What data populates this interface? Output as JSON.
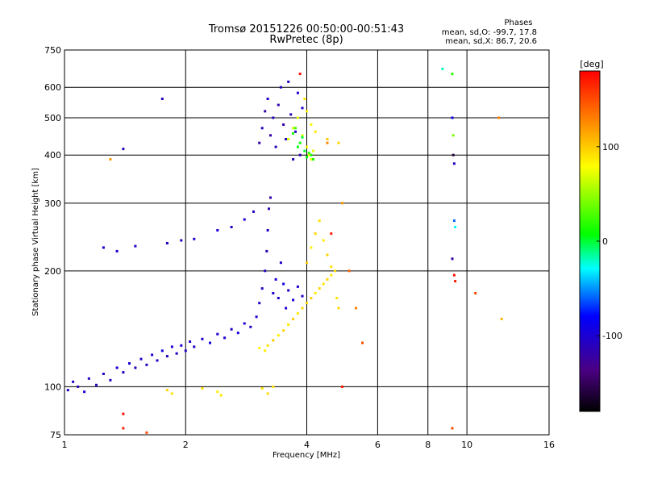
{
  "chart_data": {
    "type": "scatter",
    "title": "Tromsø 20151226 00:50:00-00:51:43",
    "subtitle": "RwPretec (8p)",
    "stats": {
      "heading": "Phases",
      "line_o": "mean, sd,O: -99.7, 17.8",
      "line_x": "mean, sd,X:  86.7, 20.6"
    },
    "xlabel": "Frequency [MHz]",
    "ylabel": "Stationary phase Virtual Height [km]",
    "x_scale": "log",
    "y_scale": "log",
    "xlim": [
      1,
      16
    ],
    "ylim": [
      75,
      750
    ],
    "x_ticks": [
      1,
      2,
      4,
      6,
      8,
      10,
      16
    ],
    "x_tick_labels": [
      "1",
      "2",
      "4",
      "6",
      "8",
      "10",
      "16"
    ],
    "y_ticks": [
      75,
      100,
      200,
      300,
      400,
      500,
      600,
      750
    ],
    "y_tick_labels": [
      "75",
      "100",
      "200",
      "300",
      "400",
      "500",
      "600",
      "750"
    ],
    "grid": true,
    "colorbar": {
      "label": "[deg]",
      "range": [
        -180,
        180
      ],
      "ticks": [
        100,
        0,
        -100
      ],
      "tick_labels": [
        "100",
        "0",
        "-100"
      ]
    },
    "series": [
      {
        "values": [
          [
            1.02,
            98,
            -110
          ],
          [
            1.05,
            103,
            -105
          ],
          [
            1.08,
            100,
            -115
          ],
          [
            1.12,
            97,
            -100
          ],
          [
            1.15,
            105,
            -108
          ],
          [
            1.2,
            101,
            -112
          ],
          [
            1.25,
            108,
            -104
          ],
          [
            1.3,
            104,
            -110
          ],
          [
            1.35,
            112,
            -100
          ],
          [
            1.4,
            109,
            -106
          ],
          [
            1.45,
            115,
            -98
          ],
          [
            1.5,
            112,
            -110
          ],
          [
            1.55,
            118,
            -102
          ],
          [
            1.6,
            114,
            -108
          ],
          [
            1.65,
            121,
            -100
          ],
          [
            1.7,
            117,
            -104
          ],
          [
            1.75,
            124,
            -96
          ],
          [
            1.8,
            120,
            -110
          ],
          [
            1.85,
            127,
            -100
          ],
          [
            1.9,
            122,
            -106
          ],
          [
            1.95,
            128,
            -98
          ],
          [
            2.0,
            124,
            -104
          ],
          [
            2.05,
            131,
            -100
          ],
          [
            2.1,
            127,
            -108
          ],
          [
            2.2,
            133,
            -102
          ],
          [
            2.3,
            130,
            -96
          ],
          [
            2.4,
            137,
            -106
          ],
          [
            2.5,
            134,
            -100
          ],
          [
            2.6,
            141,
            -104
          ],
          [
            2.7,
            138,
            -98
          ],
          [
            2.8,
            146,
            -102
          ],
          [
            2.9,
            143,
            -108
          ],
          [
            3.0,
            152,
            -100
          ],
          [
            3.05,
            165,
            -104
          ],
          [
            3.1,
            180,
            -110
          ],
          [
            3.15,
            200,
            -106
          ],
          [
            3.18,
            225,
            -112
          ],
          [
            3.2,
            255,
            -108
          ],
          [
            3.22,
            290,
            -115
          ],
          [
            3.25,
            310,
            -120
          ],
          [
            3.3,
            175,
            -100
          ],
          [
            3.35,
            190,
            -98
          ],
          [
            3.4,
            170,
            -104
          ],
          [
            3.45,
            210,
            -100
          ],
          [
            3.5,
            185,
            -96
          ],
          [
            3.55,
            160,
            -100
          ],
          [
            3.6,
            178,
            -106
          ],
          [
            3.7,
            168,
            -98
          ],
          [
            3.8,
            182,
            -102
          ],
          [
            3.9,
            172,
            -96
          ],
          [
            1.25,
            230,
            -100
          ],
          [
            1.5,
            232,
            -105
          ],
          [
            1.8,
            236,
            -108
          ],
          [
            1.95,
            240,
            -110
          ],
          [
            2.1,
            242,
            -104
          ],
          [
            2.4,
            255,
            -100
          ],
          [
            2.6,
            260,
            -106
          ],
          [
            2.8,
            272,
            -102
          ],
          [
            2.95,
            285,
            -108
          ],
          [
            3.05,
            430,
            -115
          ],
          [
            3.1,
            470,
            -110
          ],
          [
            3.15,
            520,
            -118
          ],
          [
            3.2,
            560,
            -105
          ],
          [
            3.25,
            450,
            -120
          ],
          [
            3.3,
            500,
            -112
          ],
          [
            3.35,
            420,
            -108
          ],
          [
            3.4,
            540,
            -116
          ],
          [
            3.45,
            600,
            -110
          ],
          [
            3.5,
            480,
            -114
          ],
          [
            3.55,
            440,
            -106
          ],
          [
            3.6,
            620,
            -108
          ],
          [
            3.65,
            510,
            -112
          ],
          [
            3.7,
            390,
            -110
          ],
          [
            3.75,
            460,
            -104
          ],
          [
            3.8,
            580,
            -100
          ],
          [
            3.85,
            400,
            -110
          ],
          [
            3.9,
            530,
            -106
          ],
          [
            1.4,
            415,
            -110
          ],
          [
            1.75,
            560,
            -112
          ],
          [
            1.35,
            225,
            -100
          ]
        ]
      },
      {
        "values": [
          [
            3.2,
            128,
            90
          ],
          [
            3.3,
            132,
            100
          ],
          [
            3.4,
            136,
            85
          ],
          [
            3.5,
            140,
            95
          ],
          [
            3.6,
            145,
            90
          ],
          [
            3.7,
            150,
            100
          ],
          [
            3.8,
            155,
            88
          ],
          [
            3.9,
            160,
            95
          ],
          [
            4.0,
            165,
            92
          ],
          [
            4.1,
            170,
            98
          ],
          [
            4.2,
            175,
            86
          ],
          [
            4.3,
            180,
            94
          ],
          [
            4.4,
            185,
            90
          ],
          [
            4.5,
            190,
            96
          ],
          [
            4.6,
            195,
            88
          ],
          [
            4.7,
            200,
            92
          ],
          [
            4.0,
            210,
            100
          ],
          [
            4.1,
            230,
            85
          ],
          [
            4.2,
            250,
            95
          ],
          [
            4.3,
            270,
            90
          ],
          [
            4.4,
            240,
            88
          ],
          [
            4.5,
            220,
            96
          ],
          [
            4.6,
            205,
            92
          ],
          [
            4.75,
            170,
            90
          ],
          [
            4.8,
            160,
            94
          ],
          [
            3.6,
            440,
            70
          ],
          [
            3.7,
            470,
            65
          ],
          [
            3.8,
            500,
            75
          ],
          [
            3.9,
            450,
            70
          ],
          [
            4.0,
            420,
            80
          ],
          [
            4.05,
            400,
            75
          ],
          [
            4.1,
            390,
            70
          ],
          [
            4.15,
            410,
            72
          ],
          [
            4.0,
            520,
            85
          ],
          [
            4.1,
            480,
            82
          ],
          [
            3.95,
            560,
            90
          ],
          [
            4.2,
            460,
            88
          ],
          [
            4.5,
            440,
            100
          ],
          [
            4.8,
            430,
            95
          ],
          [
            1.8,
            98,
            95
          ],
          [
            1.85,
            96,
            90
          ],
          [
            2.2,
            99,
            92
          ],
          [
            2.4,
            97,
            85
          ],
          [
            2.45,
            95,
            90
          ],
          [
            3.1,
            99,
            90
          ],
          [
            3.2,
            96,
            94
          ],
          [
            3.3,
            100,
            88
          ],
          [
            3.05,
            126,
            80
          ],
          [
            3.15,
            124,
            85
          ]
        ]
      },
      {
        "values": [
          [
            3.8,
            420,
            5
          ],
          [
            3.85,
            430,
            10
          ],
          [
            3.9,
            445,
            0
          ],
          [
            3.7,
            455,
            15
          ],
          [
            4.0,
            395,
            5
          ],
          [
            4.05,
            405,
            20
          ],
          [
            4.1,
            400,
            10
          ],
          [
            3.75,
            470,
            25
          ],
          [
            3.95,
            410,
            0
          ],
          [
            4.15,
            390,
            15
          ]
        ]
      },
      {
        "values": [
          [
            8.7,
            670,
            -20
          ],
          [
            9.2,
            650,
            20
          ],
          [
            9.2,
            500,
            -90
          ],
          [
            9.25,
            450,
            40
          ],
          [
            9.25,
            400,
            -160
          ],
          [
            9.3,
            380,
            -110
          ],
          [
            9.3,
            270,
            -60
          ],
          [
            9.35,
            260,
            -30
          ],
          [
            9.2,
            215,
            -120
          ],
          [
            9.3,
            195,
            175
          ],
          [
            9.35,
            188,
            170
          ],
          [
            10.5,
            175,
            150
          ],
          [
            12.2,
            150,
            110
          ],
          [
            12.0,
            500,
            130
          ],
          [
            9.2,
            78,
            150
          ],
          [
            1.3,
            390,
            120
          ],
          [
            1.4,
            78,
            170
          ],
          [
            1.6,
            76,
            150
          ],
          [
            1.4,
            85,
            175
          ],
          [
            3.85,
            650,
            175
          ],
          [
            4.5,
            430,
            130
          ],
          [
            4.6,
            250,
            170
          ],
          [
            4.9,
            300,
            120
          ],
          [
            5.1,
            200,
            140
          ],
          [
            5.3,
            160,
            130
          ],
          [
            4.9,
            100,
            170
          ],
          [
            5.5,
            130,
            150
          ]
        ]
      }
    ]
  }
}
